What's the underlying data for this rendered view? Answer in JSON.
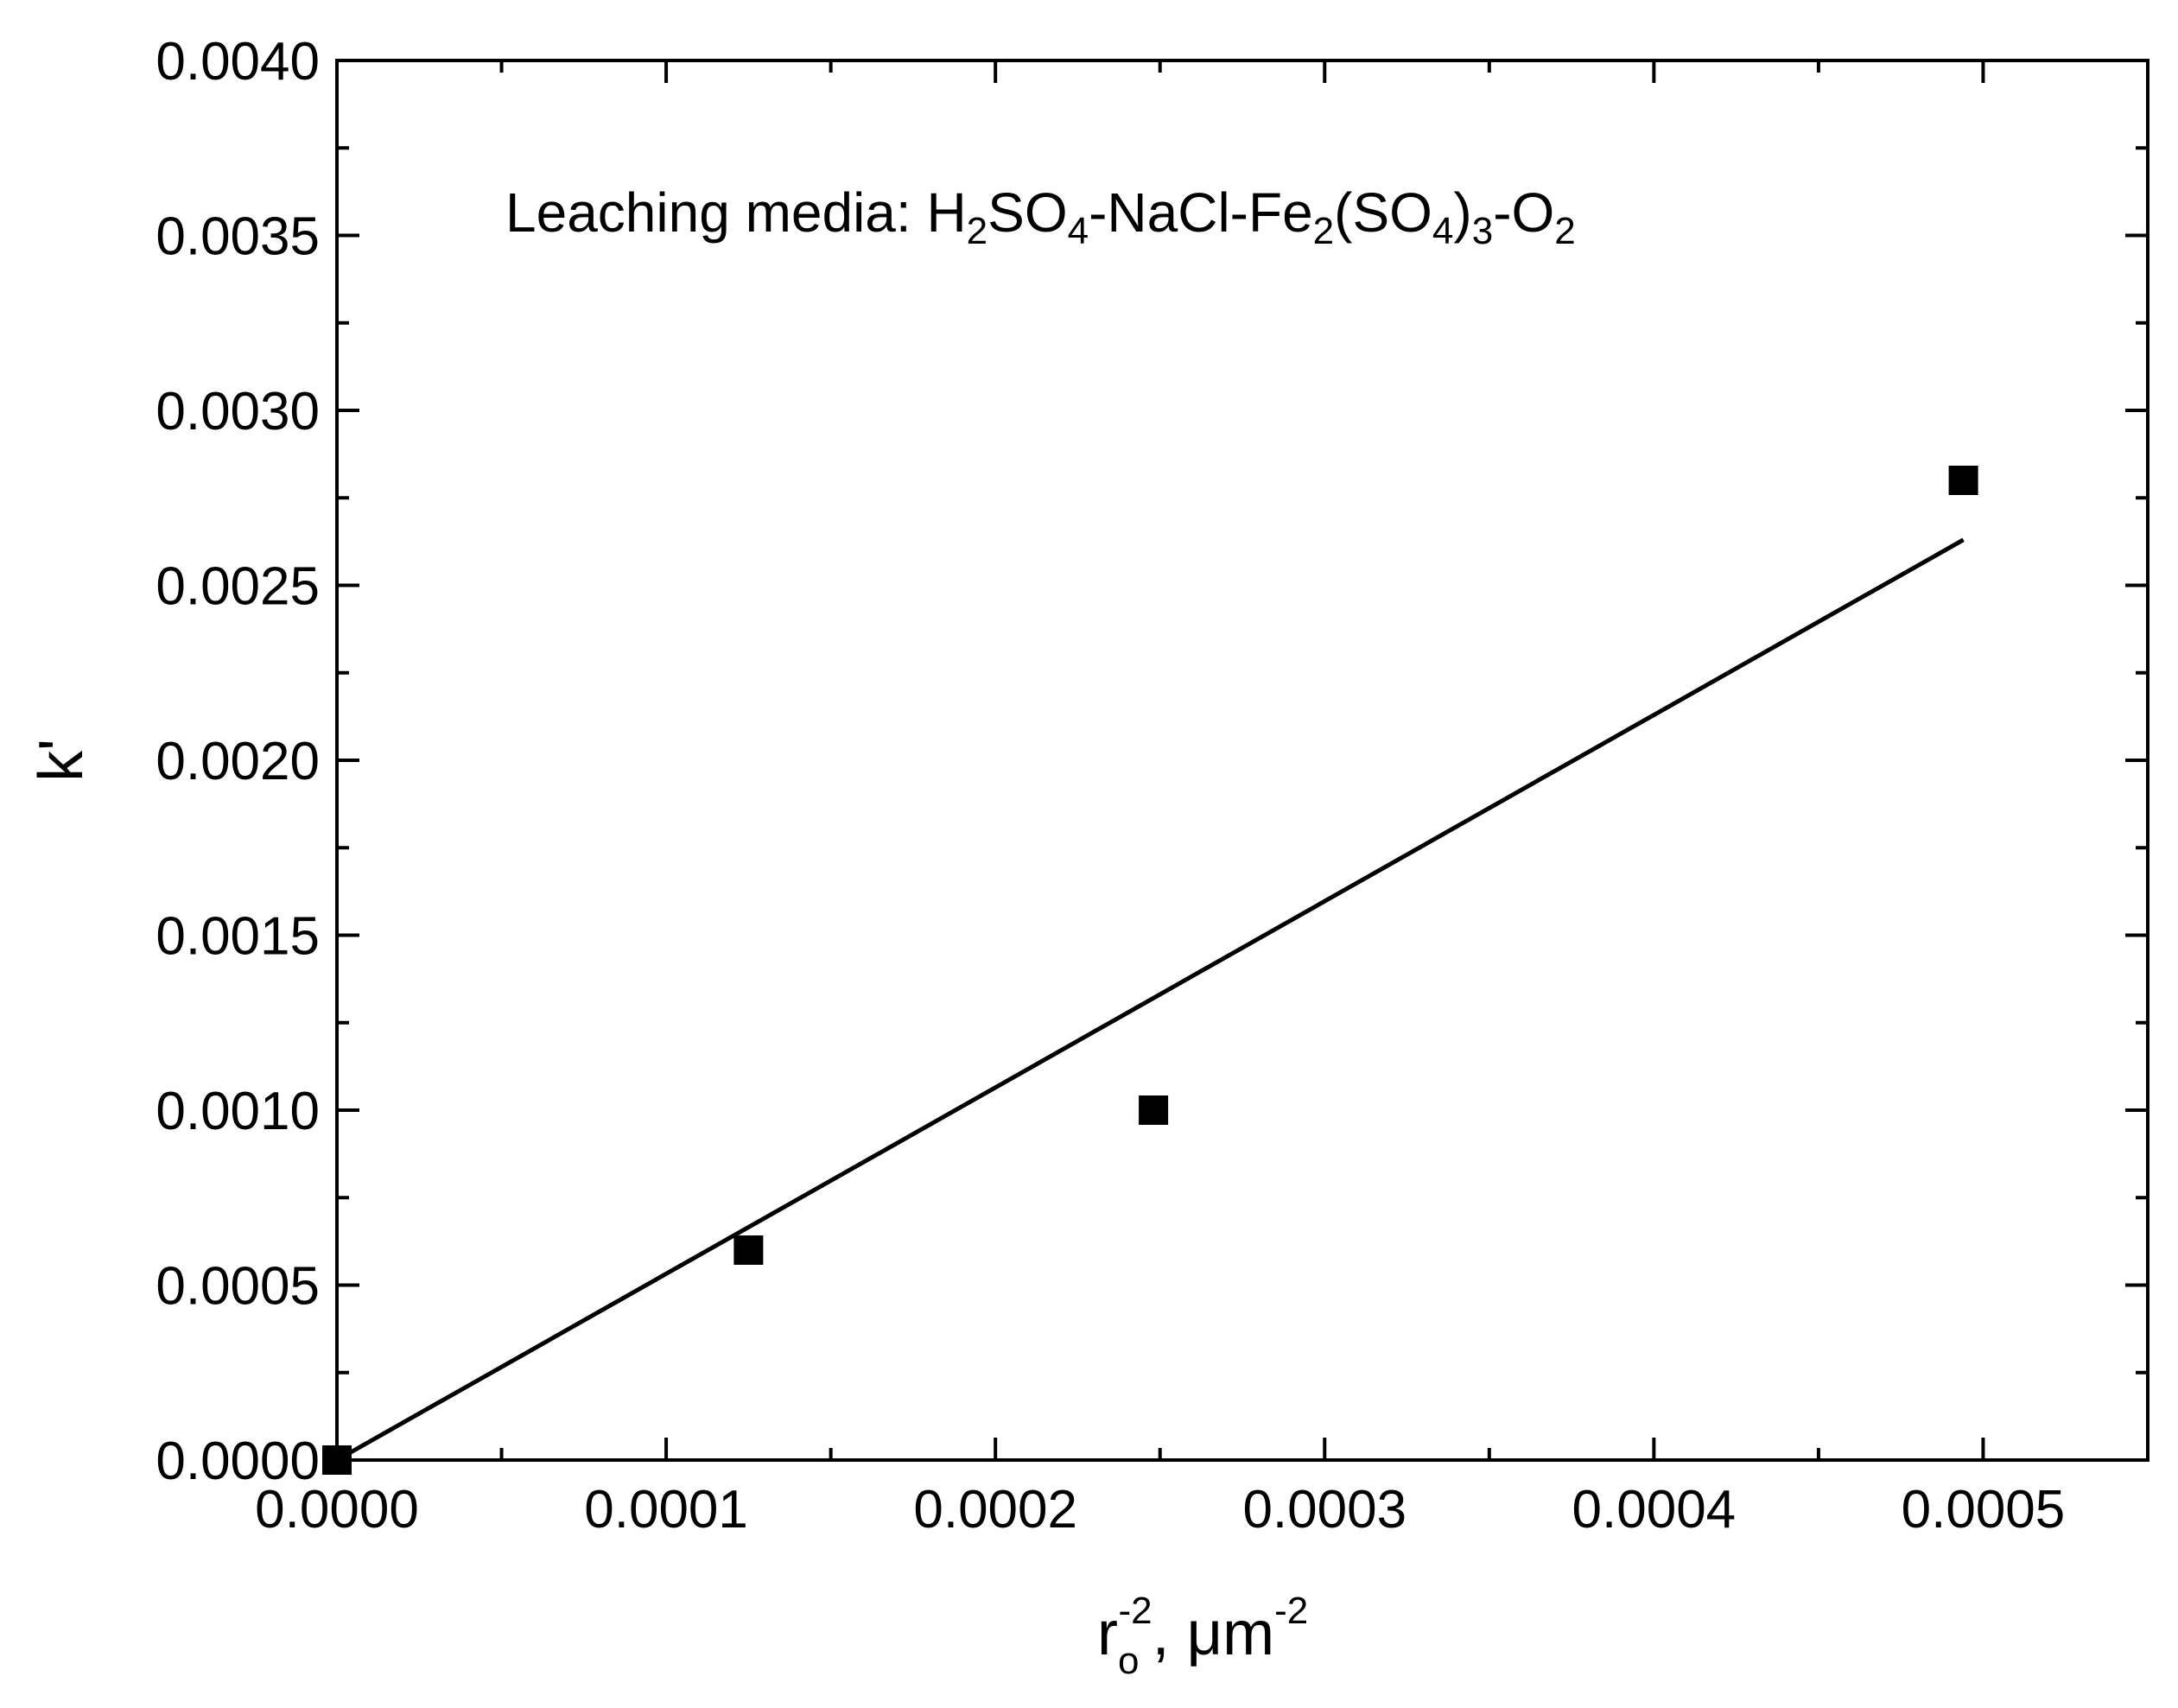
{
  "chart_data": {
    "type": "scatter",
    "title": "",
    "xlabel": {
      "main": "r",
      "sub": "o",
      "sup": "-2",
      "rest": ", μm",
      "rest_sup": "-2"
    },
    "ylabel": "k'",
    "xlim": [
      0,
      0.00055
    ],
    "ylim": [
      0,
      0.004
    ],
    "x_major_ticks": [
      0,
      0.0001,
      0.0002,
      0.0003,
      0.0004,
      0.0005
    ],
    "x_tick_labels": [
      "0.0000",
      "0.0001",
      "0.0002",
      "0.0003",
      "0.0004",
      "0.0005"
    ],
    "x_minor_step": 5e-05,
    "y_major_ticks": [
      0,
      0.0005,
      0.001,
      0.0015,
      0.002,
      0.0025,
      0.003,
      0.0035,
      0.004
    ],
    "y_tick_labels": [
      "0.0000",
      "0.0005",
      "0.0010",
      "0.0015",
      "0.0020",
      "0.0025",
      "0.0030",
      "0.0035",
      "0.0040"
    ],
    "y_minor_step": 0.00025,
    "grid": false,
    "series": [
      {
        "marker": "square",
        "color": "#000000",
        "points": [
          {
            "x": 0.0,
            "y": 0.0
          },
          {
            "x": 0.000125,
            "y": 0.0006
          },
          {
            "x": 0.000248,
            "y": 0.001
          },
          {
            "x": 0.000494,
            "y": 0.0028
          }
        ]
      }
    ],
    "fit_line": {
      "color": "#000000",
      "x": [
        0.0,
        0.000494
      ],
      "y": [
        0.0,
        0.00263
      ]
    },
    "annotation": {
      "parts": [
        {
          "t": "Leaching media: H",
          "s": "n"
        },
        {
          "t": "2",
          "s": "sub"
        },
        {
          "t": "SO",
          "s": "n"
        },
        {
          "t": "4",
          "s": "sub"
        },
        {
          "t": "-NaCl-Fe",
          "s": "n"
        },
        {
          "t": "2",
          "s": "sub"
        },
        {
          "t": "(SO",
          "s": "n"
        },
        {
          "t": "4",
          "s": "sub"
        },
        {
          "t": ")",
          "s": "n"
        },
        {
          "t": "3",
          "s": "sub"
        },
        {
          "t": "-O",
          "s": "n"
        },
        {
          "t": "2",
          "s": "sub"
        }
      ]
    }
  }
}
